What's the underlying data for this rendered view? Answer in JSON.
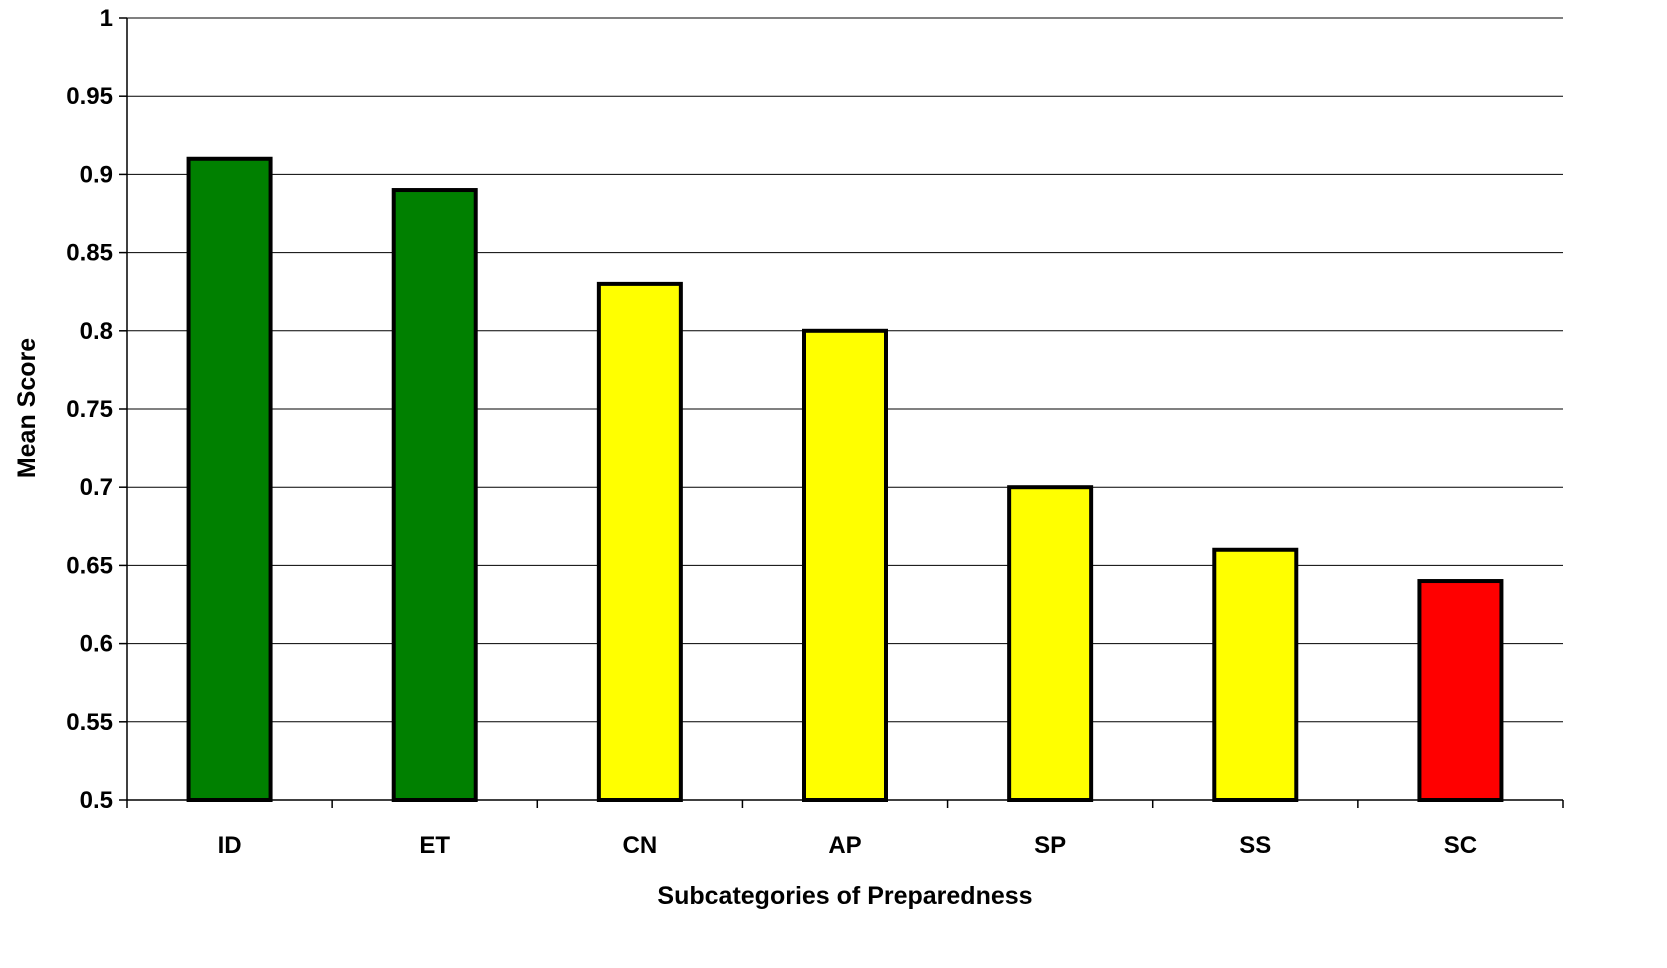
{
  "chart_data": {
    "type": "bar",
    "title": "",
    "xlabel": "Subcategories of Preparedness",
    "ylabel": "Mean Score",
    "categories": [
      "ID",
      "ET",
      "CN",
      "AP",
      "SP",
      "SS",
      "SC"
    ],
    "values": [
      0.91,
      0.89,
      0.83,
      0.8,
      0.7,
      0.66,
      0.64
    ],
    "bar_colors": [
      "#008000",
      "#008000",
      "#ffff00",
      "#ffff00",
      "#ffff00",
      "#ffff00",
      "#ff0000"
    ],
    "ylim": [
      0.5,
      1
    ],
    "yticks": [
      "0.5",
      "0.55",
      "0.6",
      "0.65",
      "0.7",
      "0.75",
      "0.8",
      "0.85",
      "0.9",
      "0.95",
      "1"
    ],
    "grid": true,
    "legend": "none"
  }
}
